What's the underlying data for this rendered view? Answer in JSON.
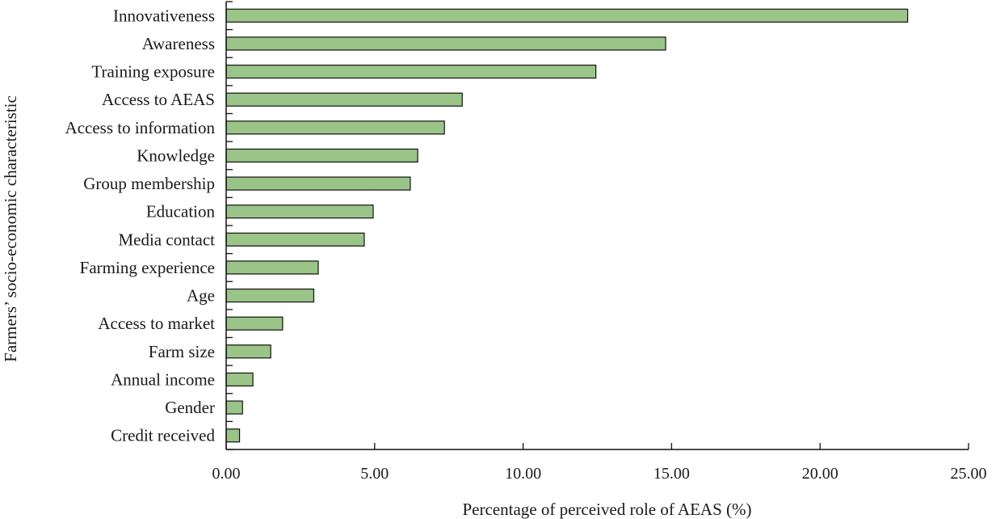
{
  "chart_data": {
    "type": "bar",
    "orientation": "horizontal",
    "categories": [
      "Innovativeness",
      "Awareness",
      "Training exposure",
      "Access to AEAS",
      "Access to information",
      "Knowledge",
      "Group membership",
      "Education",
      "Media contact",
      "Farming experience",
      "Age",
      "Access to market",
      "Farm size",
      "Annual income",
      "Gender",
      "Credit received"
    ],
    "values": [
      22.95,
      14.8,
      12.45,
      7.95,
      7.35,
      6.45,
      6.2,
      4.95,
      4.65,
      3.1,
      2.95,
      1.9,
      1.5,
      0.9,
      0.55,
      0.45
    ],
    "xlabel": "Percentage of perceived role of AEAS (%)",
    "ylabel": "Farmers’ socio-economic characteristic",
    "xlim": [
      0,
      25
    ],
    "xticks": [
      "0.00",
      "5.00",
      "10.00",
      "15.00",
      "20.00",
      "25.00"
    ],
    "grid": false,
    "bar_color": "#9ac488",
    "bar_edge_color": "#111111"
  }
}
